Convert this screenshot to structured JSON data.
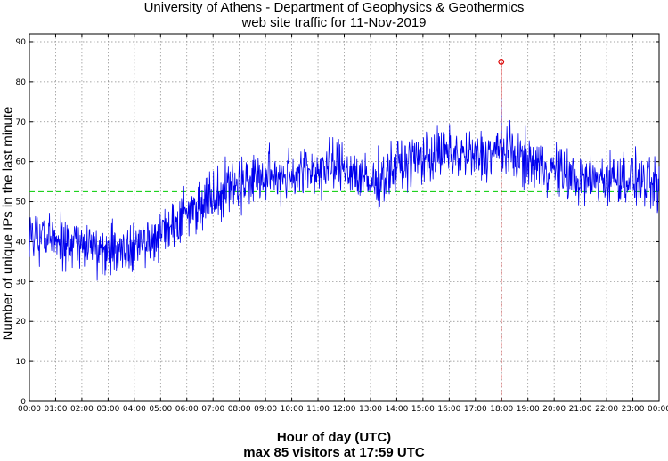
{
  "chart_data": {
    "type": "line",
    "title": "University of Athens - Department of Geophysics & Geothermics",
    "subtitle": "web site traffic for 11-Nov-2019",
    "xlabel": "Hour of day (UTC)",
    "footer": "max 85 visitors at 17:59 UTC",
    "ylabel": "Number of unique IPs in the last minute",
    "x_ticks": [
      "00:00",
      "01:00",
      "02:00",
      "03:00",
      "04:00",
      "05:00",
      "06:00",
      "07:00",
      "08:00",
      "09:00",
      "10:00",
      "11:00",
      "12:00",
      "13:00",
      "14:00",
      "15:00",
      "16:00",
      "17:00",
      "18:00",
      "19:00",
      "20:00",
      "21:00",
      "22:00",
      "23:00",
      "00:00"
    ],
    "y_ticks": [
      0,
      10,
      20,
      30,
      40,
      50,
      60,
      70,
      80,
      90
    ],
    "xlim_hours": [
      0,
      24
    ],
    "ylim": [
      0,
      92
    ],
    "grid": true,
    "series_hourly_mean": {
      "x_hours": [
        0,
        1,
        2,
        3,
        4,
        5,
        6,
        7,
        8,
        9,
        10,
        11,
        12,
        13,
        14,
        15,
        16,
        17,
        18,
        19,
        20,
        21,
        22,
        23,
        24
      ],
      "y": [
        42,
        40,
        39,
        38,
        39,
        42,
        47,
        52,
        55,
        56,
        57,
        58,
        59,
        54,
        59,
        61,
        62,
        61,
        63,
        60,
        58,
        55,
        56,
        56,
        53
      ]
    },
    "mean_line": 52.5,
    "peak": {
      "time": "17:59",
      "hour": 17.983,
      "value": 85
    },
    "colors": {
      "series": "#0000ee",
      "mean": "#00cc00",
      "peak": "#dd0000",
      "grid": "#888888"
    }
  }
}
